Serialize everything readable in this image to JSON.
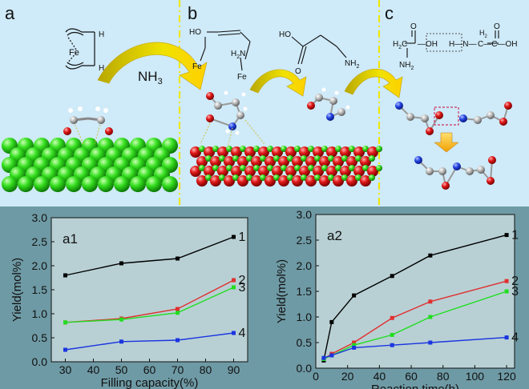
{
  "top_panel": {
    "labels": {
      "a": "a",
      "b": "b",
      "c": "c"
    },
    "nh3": "NH",
    "nh3_sub": "3",
    "chem_a": {
      "fe": "Fe",
      "h1": "H",
      "h2": "H"
    },
    "chem_b": {
      "ho": "HO",
      "fe1": "Fe",
      "h2n": "H",
      "n": "N",
      "h_sub": "2",
      "fe2": "Fe",
      "ho2": "HO",
      "nh2": "NH",
      "nh2_sub": "2"
    },
    "chem_c": {
      "h2c": "H",
      "c_sub": "2",
      "c1": "C",
      "cooh_top": "O",
      "oh_dash": "—OH",
      "h_hn": "H—N—",
      "h2": "H",
      "h2_sub": "2",
      "c2": "C—C—OH",
      "o2": "O",
      "nh2": "NH",
      "nh2_sub": "2"
    }
  },
  "chart_data": [
    {
      "type": "line",
      "panel_label": "a1",
      "xlabel": "Filling capacity(%)",
      "ylabel": "Yield(mol%)",
      "xlim": [
        25,
        95
      ],
      "ylim": [
        0.0,
        3.0
      ],
      "xticks": [
        "30",
        "40",
        "50",
        "60",
        "70",
        "80",
        "90"
      ],
      "yticks": [
        "0.0",
        "0.5",
        "1.0",
        "1.5",
        "2.0",
        "2.5",
        "3.0"
      ],
      "x": [
        30,
        50,
        70,
        90
      ],
      "series": [
        {
          "name": "1",
          "color": "#000000",
          "values": [
            1.8,
            2.05,
            2.15,
            2.6
          ]
        },
        {
          "name": "2",
          "color": "#e03030",
          "values": [
            0.82,
            0.9,
            1.1,
            1.7
          ]
        },
        {
          "name": "3",
          "color": "#22dd22",
          "values": [
            0.82,
            0.88,
            1.02,
            1.55
          ]
        },
        {
          "name": "4",
          "color": "#1a35e0",
          "values": [
            0.25,
            0.42,
            0.45,
            0.6
          ]
        }
      ]
    },
    {
      "type": "line",
      "panel_label": "a2",
      "xlabel": "Reaction time(h)",
      "ylabel": "Yield(mol%)",
      "xlim": [
        0,
        125
      ],
      "ylim": [
        0.0,
        3.0
      ],
      "xticks": [
        "0",
        "20",
        "40",
        "60",
        "80",
        "100",
        "120"
      ],
      "yticks": [
        "0.0",
        "0.5",
        "1.0",
        "1.5",
        "2.0",
        "2.5",
        "3.0"
      ],
      "series": [
        {
          "name": "1",
          "color": "#000000",
          "x": [
            5,
            10,
            24,
            48,
            72,
            120
          ],
          "values": [
            0.15,
            0.9,
            1.42,
            1.8,
            2.2,
            2.6
          ]
        },
        {
          "name": "2",
          "color": "#e03030",
          "x": [
            5,
            10,
            24,
            48,
            72,
            120
          ],
          "values": [
            0.18,
            0.28,
            0.5,
            0.98,
            1.3,
            1.7
          ]
        },
        {
          "name": "3",
          "color": "#22dd22",
          "x": [
            5,
            10,
            24,
            48,
            72,
            120
          ],
          "values": [
            0.18,
            0.25,
            0.45,
            0.65,
            1.0,
            1.5
          ]
        },
        {
          "name": "4",
          "color": "#1a35e0",
          "x": [
            5,
            10,
            24,
            48,
            72,
            120
          ],
          "values": [
            0.2,
            0.25,
            0.4,
            0.45,
            0.5,
            0.6
          ]
        }
      ]
    }
  ]
}
